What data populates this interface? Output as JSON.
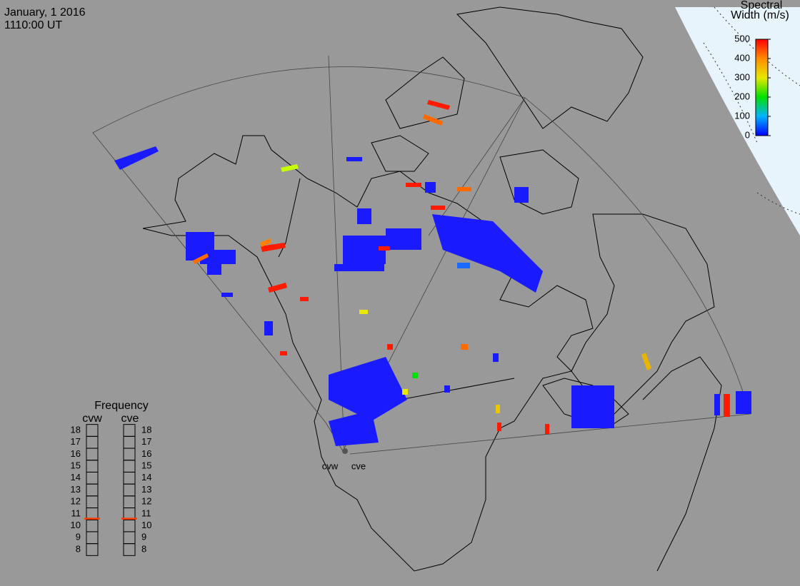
{
  "header": {
    "date": "January, 1 2016",
    "time": "1110:00 UT"
  },
  "colorbar": {
    "title_line1": "Spectral",
    "title_line2": "Width (m/s)",
    "ticks": [
      0,
      100,
      200,
      300,
      400,
      500
    ]
  },
  "frequency": {
    "title": "Frequency",
    "ticks": [
      8,
      9,
      10,
      11,
      12,
      13,
      14,
      15,
      16,
      17,
      18
    ],
    "radars": [
      {
        "name": "cvw",
        "value": 10.6
      },
      {
        "name": "cve",
        "value": 10.6
      }
    ]
  },
  "sites": [
    "cvw",
    "cve"
  ]
}
